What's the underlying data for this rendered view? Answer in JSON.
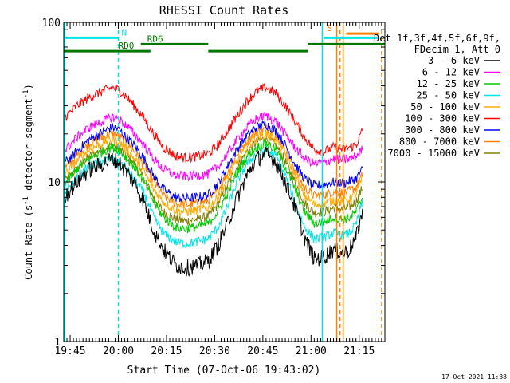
{
  "chart_data": {
    "type": "line",
    "title": "RHESSI Count Rates",
    "xlabel": "Start Time (07-Oct-06 19:43:02)",
    "ylabel": "Count Rate (s⁻¹ detector segment⁻¹)",
    "ylabel_parts": {
      "prefix": "Count Rate (s",
      "sup1": "-1",
      "mid": " detector segment",
      "sup2": "-1",
      "suffix": ")"
    },
    "x_unit": "minutes after 19:43:02",
    "xlim": [
      0,
      100
    ],
    "ylim": [
      1,
      100
    ],
    "yscale": "log",
    "x_ticks": [
      {
        "value": 2,
        "label": "19:45"
      },
      {
        "value": 17,
        "label": "20:00"
      },
      {
        "value": 32,
        "label": "20:15"
      },
      {
        "value": 47,
        "label": "20:30"
      },
      {
        "value": 62,
        "label": "20:45"
      },
      {
        "value": 77,
        "label": "21:00"
      },
      {
        "value": 92,
        "label": "21:15"
      }
    ],
    "y_ticks": [
      {
        "value": 1,
        "label": "1"
      },
      {
        "value": 10,
        "label": "10"
      },
      {
        "value": 100,
        "label": "100"
      }
    ],
    "legend_title": [
      "Det 1f,3f,4f,5f,6f,9f,",
      "FDecim 1, Att 0"
    ],
    "legend_position": "right",
    "x": [
      0,
      4,
      8,
      12,
      15,
      17,
      19,
      22,
      25,
      28,
      31,
      35,
      38,
      41,
      45,
      48,
      51,
      54,
      57,
      60,
      63,
      66,
      69,
      72,
      75,
      78,
      81,
      84,
      87,
      89,
      91,
      93
    ],
    "series": [
      {
        "name": "3 - 6 keV",
        "color": "#000000",
        "noise": 0.12,
        "values": [
          8,
          10,
          12,
          13,
          14,
          13.5,
          12,
          10,
          7.5,
          5,
          3.8,
          3.0,
          2.9,
          3.0,
          3.2,
          4,
          5.5,
          8,
          11,
          14,
          15,
          13.5,
          10,
          7,
          4.5,
          3.3,
          3.4,
          3.8,
          3.6,
          3.8,
          4.5,
          6.5
        ]
      },
      {
        "name": "6 - 12 keV",
        "color": "#ff00ff",
        "values": [
          15.5,
          19,
          22,
          24,
          25.5,
          25,
          23,
          20,
          17,
          14,
          12,
          11,
          10.9,
          11,
          11.2,
          12.5,
          15,
          18.5,
          22,
          25,
          26,
          24,
          20,
          16.5,
          14,
          13,
          13.2,
          14,
          13.8,
          14,
          14.5,
          16
        ]
      },
      {
        "name": "12 - 25 keV",
        "color": "#00cc00",
        "values": [
          9.5,
          12,
          14,
          15.5,
          16.5,
          16,
          14.5,
          12.5,
          10,
          7.5,
          6,
          5.2,
          5.1,
          5.2,
          5.5,
          6.5,
          8.5,
          11.5,
          14.5,
          16.5,
          17.5,
          16,
          12.5,
          9,
          6.5,
          5.5,
          5.6,
          6,
          5.8,
          6,
          6.5,
          8
        ]
      },
      {
        "name": "25 - 50 keV",
        "color": "#00e5e5",
        "values": [
          8.5,
          10.5,
          12.5,
          13.5,
          14,
          13.5,
          12.5,
          10.5,
          8.5,
          6,
          4.8,
          4.2,
          4.1,
          4.2,
          4.4,
          5.2,
          7,
          10,
          13,
          15,
          16,
          14.5,
          11,
          7.5,
          5.2,
          4.4,
          4.5,
          4.8,
          4.6,
          4.8,
          5.4,
          7.5
        ]
      },
      {
        "name": "50 - 100 keV",
        "color": "#ffaa00",
        "values": [
          11,
          13.5,
          16,
          17.5,
          18.5,
          18,
          16.5,
          14,
          11.5,
          9,
          7.5,
          6.6,
          6.5,
          6.6,
          6.9,
          8,
          10.5,
          13.5,
          16.5,
          19,
          20,
          18.5,
          15,
          11,
          8.2,
          7.2,
          7.3,
          7.7,
          7.5,
          7.8,
          8.4,
          10.5
        ]
      },
      {
        "name": "100 - 300 keV",
        "color": "#ff0000",
        "values": [
          25,
          30,
          34,
          37,
          39,
          38,
          35,
          30,
          25,
          20,
          16.5,
          14.5,
          14.2,
          14.4,
          15,
          17,
          21,
          26,
          32,
          37,
          39,
          36,
          30,
          24,
          19,
          16,
          15.5,
          16.5,
          16,
          16.5,
          17,
          21
        ]
      },
      {
        "name": "300 - 800 keV",
        "color": "#0000ff",
        "values": [
          13,
          15.5,
          18.5,
          20.5,
          22,
          21.5,
          19.5,
          17,
          14,
          11,
          9,
          8,
          7.9,
          8,
          8.3,
          9.8,
          12.5,
          16,
          19.5,
          22,
          23,
          21,
          17,
          13,
          10.5,
          9.5,
          9.6,
          10,
          9.8,
          10.1,
          10.5,
          12
        ]
      },
      {
        "name": "800 - 7000 keV",
        "color": "#ff8000",
        "values": [
          12,
          14.5,
          17.5,
          19,
          20,
          19.5,
          18,
          15.5,
          12.8,
          10,
          8.2,
          7.3,
          7.2,
          7.3,
          7.6,
          8.8,
          11.5,
          15,
          18,
          20.5,
          21.5,
          19.5,
          16,
          12,
          9.2,
          8.2,
          8.3,
          8.7,
          8.5,
          8.8,
          9.3,
          11
        ]
      },
      {
        "name": "7000 - 15000 keV",
        "color": "#808000",
        "values": [
          10,
          12,
          14.5,
          16,
          17,
          16.5,
          15,
          13,
          10.5,
          8,
          6.5,
          5.8,
          5.7,
          5.8,
          6.1,
          7.2,
          9.5,
          12.5,
          15.5,
          17.8,
          18.8,
          17,
          13.5,
          10,
          7.4,
          6.4,
          6.5,
          6.9,
          6.7,
          7,
          7.5,
          9.2
        ]
      }
    ],
    "annotations": {
      "bars": [
        {
          "label": "N",
          "color": "#00e5e5",
          "y": 80,
          "x_start": 0,
          "x_end": 17,
          "label_x": 18
        },
        {
          "label": "RD0",
          "color": "#007700",
          "y": 66,
          "x_start": 0,
          "x_end": 27,
          "label_x": 17
        },
        {
          "label": "RD6",
          "color": "#007700",
          "y": 73,
          "x_start": 24,
          "x_end": 45,
          "label_x": 26
        },
        {
          "label": "",
          "color": "#007700",
          "y": 66,
          "x_start": 45,
          "x_end": 76,
          "label_x": 0
        },
        {
          "label": "",
          "color": "#007700",
          "y": 73,
          "x_start": 76,
          "x_end": 100,
          "label_x": 0
        },
        {
          "label": "",
          "color": "#00e5e5",
          "y": 80,
          "x_start": 81,
          "x_end": 98,
          "label_x": 0
        },
        {
          "label": "S",
          "color": "#ff8000",
          "y": 85,
          "x_start": 88,
          "x_end": 98,
          "label_x": 82
        }
      ],
      "vlines": [
        {
          "x": 0.3,
          "color": "#00e5e5",
          "dash": false
        },
        {
          "x": 17,
          "color": "#00e5e5",
          "dash": true
        },
        {
          "x": 80.5,
          "color": "#00e5e5",
          "dash": false
        },
        {
          "x": 85,
          "color": "#ff8000",
          "dash": false
        },
        {
          "x": 86,
          "color": "#ff8000",
          "dash": true
        },
        {
          "x": 87,
          "color": "#ff8000",
          "dash": false
        },
        {
          "x": 99,
          "color": "#ff8000",
          "dash": true
        }
      ]
    }
  },
  "footer": {
    "date_stamp": "17-Oct-2021 11:38"
  }
}
